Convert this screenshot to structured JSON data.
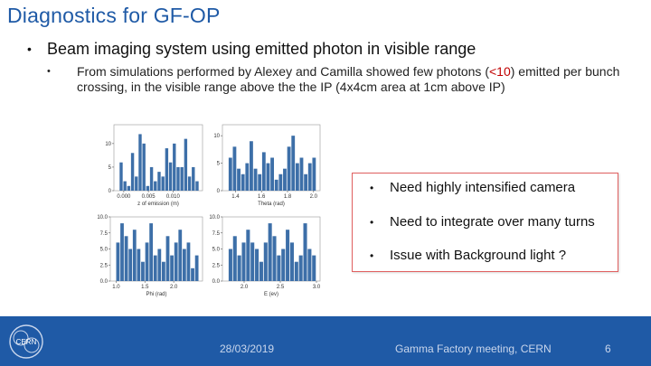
{
  "slide": {
    "title": "Diagnostics for GF-OP",
    "bullet1": "Beam imaging system using emitted photon in visible range",
    "bullet2_pre": "From simulations performed by Alexey and Camilla showed few photons (",
    "bullet2_red": "<10",
    "bullet2_post": ") emitted per bunch crossing, in the visible range above the the IP (4x4cm area at 1cm above IP)",
    "bullet_glyph": "•"
  },
  "callout": {
    "items": [
      "Need highly intensified camera",
      "Need to integrate over many turns",
      "Issue with Background light ?"
    ]
  },
  "footer": {
    "date": "28/03/2019",
    "meeting": "Gamma Factory meeting, CERN",
    "page": "6",
    "logo_text": "CERN"
  },
  "colors": {
    "title": "#1f5aa6",
    "footer": "#1f5aa6",
    "bars": "#3d6fa8",
    "highlight": "#c00000",
    "callout_border": "#e06060"
  },
  "chart_data": [
    {
      "type": "bar",
      "xlabel": "z of emission (m)",
      "xticks": [
        "0.000",
        "0.005",
        "0.010"
      ],
      "xlim": [
        -0.002,
        0.016
      ],
      "yticks": [
        "0",
        "5",
        "10"
      ],
      "ylim": [
        0,
        14
      ],
      "values": [
        6,
        2,
        1,
        8,
        3,
        12,
        10,
        1,
        5,
        2,
        4,
        3,
        9,
        6,
        10,
        5,
        5,
        11,
        3,
        5,
        2
      ]
    },
    {
      "type": "bar",
      "xlabel": "Theta (rad)",
      "xticks": [
        "1.4",
        "1.6",
        "1.8",
        "2.0"
      ],
      "xlim": [
        1.3,
        2.05
      ],
      "yticks": [
        "0",
        "5",
        "10"
      ],
      "ylim": [
        0,
        12
      ],
      "values": [
        6,
        8,
        4,
        3,
        5,
        9,
        4,
        3,
        7,
        5,
        6,
        2,
        3,
        4,
        8,
        10,
        5,
        6,
        3,
        5,
        6
      ]
    },
    {
      "type": "bar",
      "xlabel": "Phi (rad)",
      "xticks": [
        "1.0",
        "1.5",
        "2.0"
      ],
      "xlim": [
        0.9,
        2.5
      ],
      "yticks": [
        "0.0",
        "2.5",
        "5.0",
        "7.5",
        "10.0"
      ],
      "ylim": [
        0,
        10
      ],
      "values": [
        6,
        9,
        7,
        5,
        8,
        5,
        3,
        6,
        9,
        4,
        5,
        3,
        7,
        4,
        6,
        8,
        5,
        6,
        2,
        4
      ]
    },
    {
      "type": "bar",
      "xlabel": "E (ev)",
      "xticks": [
        "2.0",
        "2.5",
        "3.0"
      ],
      "xlim": [
        1.7,
        3.05
      ],
      "yticks": [
        "0.0",
        "2.5",
        "5.0",
        "7.5",
        "10.0"
      ],
      "ylim": [
        0,
        10
      ],
      "values": [
        5,
        7,
        4,
        6,
        8,
        6,
        5,
        3,
        6,
        9,
        7,
        4,
        5,
        8,
        6,
        3,
        4,
        9,
        5,
        4
      ]
    }
  ]
}
